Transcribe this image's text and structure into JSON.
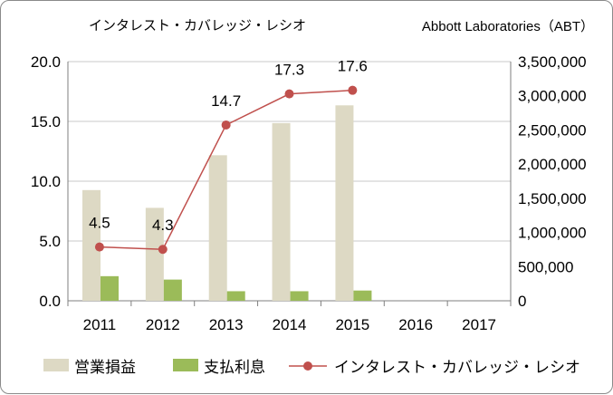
{
  "chart_data": {
    "type": "bar+line",
    "title": "インタレスト・カバレッジ・レシオ",
    "company": "Abbott Laboratories（ABT）",
    "categories": [
      "2011",
      "2012",
      "2013",
      "2014",
      "2015",
      "2016",
      "2017"
    ],
    "left_axis": {
      "min": 0,
      "max": 20,
      "ticks": [
        "0.0",
        "5.0",
        "10.0",
        "15.0",
        "20.0"
      ]
    },
    "right_axis": {
      "min": 0,
      "max": 3500000,
      "ticks": [
        "0",
        "500,000",
        "1,000,000",
        "1,500,000",
        "2,000,000",
        "2,500,000",
        "3,000,000",
        "3,500,000"
      ]
    },
    "grid": true,
    "legend_position": "bottom",
    "series": [
      {
        "name": "営業損益",
        "type": "bar",
        "axis": "right",
        "color": "#ddd9c4",
        "values": [
          1620000,
          1360000,
          2130000,
          2600000,
          2860000,
          null,
          null
        ]
      },
      {
        "name": "支払利息",
        "type": "bar",
        "axis": "right",
        "color": "#9bbb59",
        "values": [
          360000,
          310000,
          140000,
          140000,
          150000,
          null,
          null
        ]
      },
      {
        "name": "インタレスト・カバレッジ・レシオ",
        "type": "line",
        "axis": "left",
        "color": "#c0504d",
        "values": [
          4.5,
          4.3,
          14.7,
          17.3,
          17.6,
          null,
          null
        ],
        "labels": [
          "4.5",
          "4.3",
          "14.7",
          "17.3",
          "17.6",
          "",
          ""
        ]
      }
    ]
  }
}
